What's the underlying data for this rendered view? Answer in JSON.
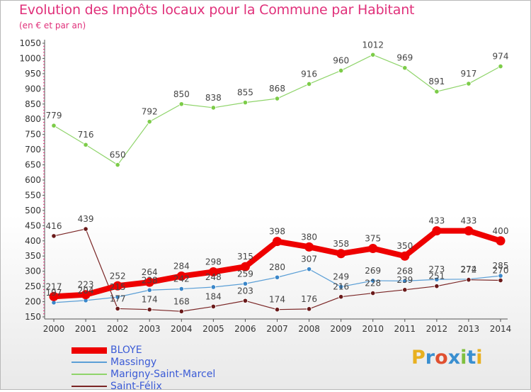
{
  "chart_data": {
    "type": "line",
    "title": "Evolution des Impôts locaux pour la Commune par Habitant",
    "subtitle": "(en € et par an)",
    "x": [
      "2000",
      "2001",
      "2002",
      "2003",
      "2004",
      "2005",
      "2006",
      "2007",
      "2008",
      "2009",
      "2010",
      "2011",
      "2012",
      "2013",
      "2014"
    ],
    "ylim": [
      150,
      1050
    ],
    "yticks": [
      150,
      200,
      250,
      300,
      350,
      400,
      450,
      500,
      550,
      600,
      650,
      700,
      750,
      800,
      850,
      900,
      950,
      1000,
      1050
    ],
    "grid": false,
    "series": [
      {
        "name": "BLOYE",
        "color": "#ee0000",
        "values": [
          217,
          223,
          252,
          264,
          284,
          298,
          315,
          398,
          380,
          358,
          375,
          350,
          433,
          433,
          400
        ]
      },
      {
        "name": "Massingy",
        "color": "#5b9fd6",
        "values": [
          197,
          204,
          215,
          238,
          242,
          248,
          259,
          280,
          307,
          249,
          269,
          268,
          273,
          274,
          285
        ]
      },
      {
        "name": "Marigny-Saint-Marcel",
        "color": "#8fd46a",
        "values": [
          779,
          716,
          650,
          792,
          850,
          838,
          855,
          868,
          916,
          960,
          1012,
          969,
          891,
          917,
          974
        ]
      },
      {
        "name": "Saint-Félix",
        "color": "#7a2525",
        "values": [
          416,
          439,
          177,
          174,
          168,
          184,
          203,
          174,
          176,
          216,
          228,
          239,
          251,
          272,
          270
        ]
      }
    ],
    "data_labels": [
      [
        "217",
        "223",
        "252",
        "264",
        "284",
        "298",
        "315",
        "398",
        "380",
        "358",
        "375",
        "350",
        "433",
        "433",
        "400"
      ],
      [
        "197",
        "204",
        "215",
        "238",
        "242",
        "248",
        "259",
        "280",
        "307",
        "249",
        "269",
        "268",
        "273",
        "274",
        "285"
      ],
      [
        "779",
        "716",
        "650",
        "792",
        "850",
        "838",
        "855",
        "868",
        "916",
        "960",
        "1012",
        "969",
        "891",
        "917",
        "974"
      ],
      [
        "416",
        "439",
        "177",
        "174",
        "168",
        "184",
        "203",
        "174",
        "176",
        "216",
        "228",
        "239",
        "251",
        "272",
        "270"
      ]
    ]
  },
  "legend": [
    "BLOYE",
    "Massingy",
    "Marigny-Saint-Marcel",
    "Saint-Félix"
  ],
  "logo": {
    "text": "Proxiti",
    "colors": [
      "#e8b020",
      "#3a8fd0",
      "#e05030",
      "#3a8fd0",
      "#80c040",
      "#3a8fd0",
      "#e8b020"
    ]
  }
}
